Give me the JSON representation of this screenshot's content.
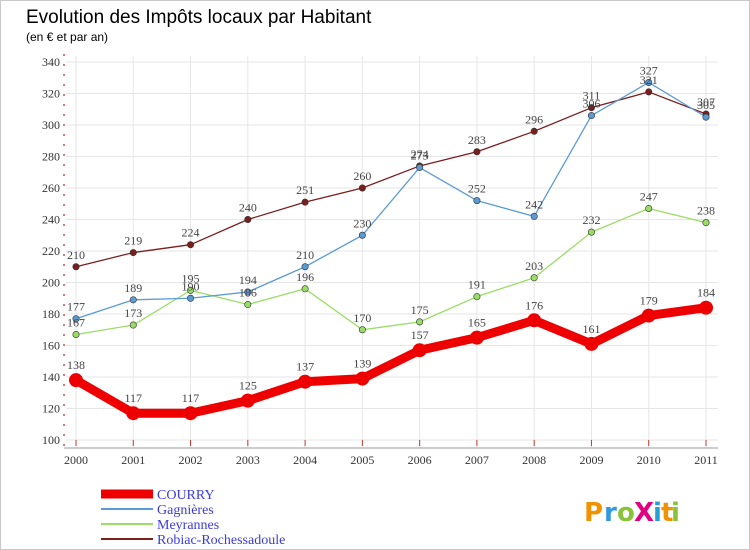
{
  "chart_data": {
    "type": "line",
    "title": "Evolution des Impôts locaux par Habitant",
    "subtitle": "(en € et par an)",
    "xlabel": "",
    "ylabel": "",
    "categories": [
      "2000",
      "2001",
      "2002",
      "2003",
      "2004",
      "2005",
      "2006",
      "2007",
      "2008",
      "2009",
      "2010",
      "2011"
    ],
    "ylim": [
      100,
      340
    ],
    "yticks": [
      100,
      120,
      140,
      160,
      180,
      200,
      220,
      240,
      260,
      280,
      300,
      320,
      340
    ],
    "grid": true,
    "legend_position": "bottom-left",
    "series": [
      {
        "name": "COURRY",
        "color": "#ee0000",
        "values": [
          138,
          117,
          117,
          125,
          137,
          139,
          157,
          165,
          176,
          161,
          179,
          184
        ]
      },
      {
        "name": "Gagnières",
        "color": "#5b9bd5",
        "values": [
          177,
          189,
          190,
          194,
          210,
          230,
          273,
          252,
          242,
          306,
          327,
          305
        ]
      },
      {
        "name": "Meyrannes",
        "color": "#99dd66",
        "values": [
          167,
          173,
          195,
          186,
          196,
          170,
          175,
          191,
          203,
          232,
          247,
          238
        ]
      },
      {
        "name": "Robiac-Rochessadoule",
        "color": "#7a1e1e",
        "values": [
          210,
          219,
          224,
          240,
          251,
          260,
          274,
          283,
          296,
          311,
          321,
          307
        ]
      }
    ]
  },
  "branding": {
    "logo_text": "ProXiti",
    "logo_letters": [
      "P",
      "r",
      "o",
      "X",
      "i",
      "t",
      "i"
    ],
    "logo_colors": [
      "#f39200",
      "#3399dd",
      "#88c33a",
      "#e3007e",
      "#2a9fd6",
      "#f39200",
      "#88c33a"
    ]
  },
  "colors": {
    "title": "#cc3366",
    "axis": "#555555",
    "grid": "#e6e6e6",
    "legend_text": "#3b3bdc"
  }
}
